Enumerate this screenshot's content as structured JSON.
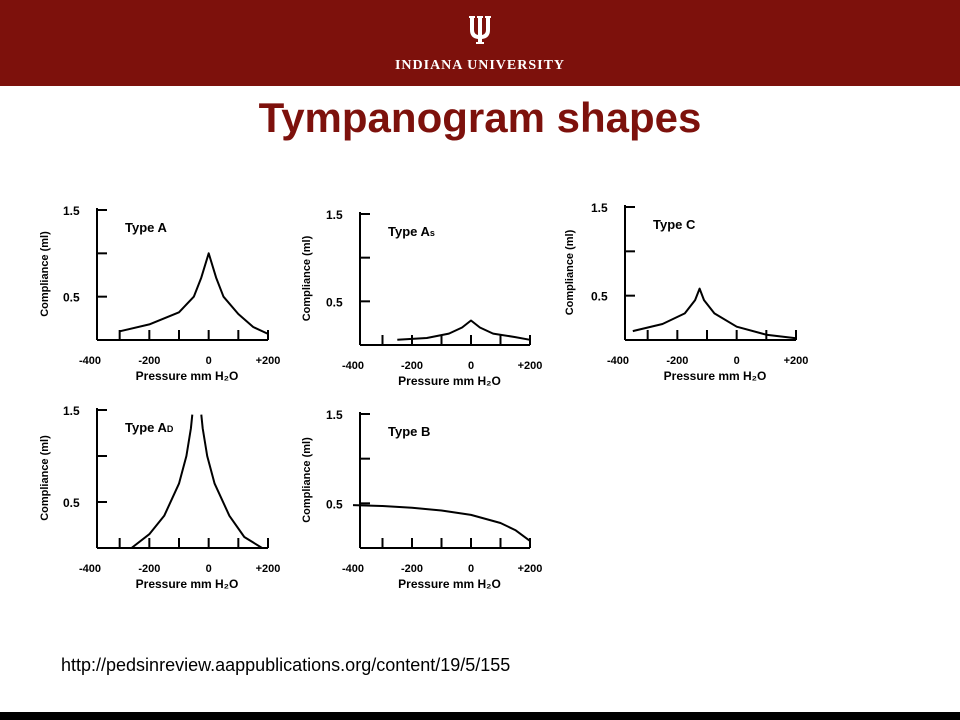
{
  "header": {
    "university_name": "INDIANA UNIVERSITY",
    "logo": "trident-icon",
    "background_color": "#7d110c"
  },
  "slide_title": "Tympanogram shapes",
  "source_url": "http://pedsinreview.aappublications.org/content/19/5/155",
  "chart_data": [
    {
      "type": "line",
      "title": "Type A",
      "xlabel": "Pressure mm H₂O",
      "ylabel": "Compliance (ml)",
      "xlim": [
        -400,
        200
      ],
      "ylim": [
        0,
        1.5
      ],
      "x_ticks": [
        "-400",
        "-200",
        "0",
        "+200"
      ],
      "y_ticks": [
        "1.5",
        "0.5"
      ],
      "series": [
        {
          "x": [
            -300,
            -200,
            -100,
            -50,
            -25,
            0,
            25,
            50,
            100,
            150,
            200
          ],
          "y": [
            0.1,
            0.18,
            0.32,
            0.5,
            0.72,
            1.0,
            0.72,
            0.5,
            0.3,
            0.15,
            0.07
          ]
        }
      ]
    },
    {
      "type": "line",
      "title": "Type As",
      "xlabel": "Pressure mm H₂O",
      "ylabel": "Compliance (ml)",
      "xlim": [
        -400,
        200
      ],
      "ylim": [
        0,
        1.5
      ],
      "x_ticks": [
        "-400",
        "-200",
        "0",
        "+200"
      ],
      "y_ticks": [
        "1.5",
        "0.5"
      ],
      "series": [
        {
          "x": [
            -250,
            -150,
            -75,
            -30,
            0,
            30,
            75,
            150,
            200
          ],
          "y": [
            0.06,
            0.08,
            0.13,
            0.2,
            0.28,
            0.2,
            0.13,
            0.09,
            0.06
          ]
        }
      ]
    },
    {
      "type": "line",
      "title": "Type C",
      "xlabel": "Pressure mm H₂O",
      "ylabel": "Compliance (ml)",
      "xlim": [
        -400,
        200
      ],
      "ylim": [
        0,
        1.5
      ],
      "x_ticks": [
        "-400",
        "-200",
        "0",
        "+200"
      ],
      "y_ticks": [
        "1.5",
        "0.5"
      ],
      "series": [
        {
          "x": [
            -350,
            -250,
            -175,
            -140,
            -125,
            -110,
            -75,
            0,
            100,
            200
          ],
          "y": [
            0.1,
            0.18,
            0.3,
            0.45,
            0.58,
            0.45,
            0.3,
            0.15,
            0.06,
            0.02
          ]
        }
      ]
    },
    {
      "type": "line",
      "title": "Type AD",
      "xlabel": "Pressure mm H₂O",
      "ylabel": "Compliance (ml)",
      "xlim": [
        -400,
        200
      ],
      "ylim": [
        0,
        1.5
      ],
      "x_ticks": [
        "-400",
        "-200",
        "0",
        "+200"
      ],
      "y_ticks": [
        "1.5",
        "0.5"
      ],
      "series": [
        {
          "x": [
            -260,
            -200,
            -150,
            -100,
            -75,
            -60,
            -55
          ],
          "y": [
            0.0,
            0.15,
            0.35,
            0.7,
            1.0,
            1.3,
            1.45
          ]
        },
        {
          "x": [
            -25,
            -20,
            -5,
            20,
            70,
            120,
            180
          ],
          "y": [
            1.45,
            1.3,
            1.0,
            0.7,
            0.35,
            0.12,
            0.0
          ]
        }
      ]
    },
    {
      "type": "line",
      "title": "Type B",
      "xlabel": "Pressure mm H₂O",
      "ylabel": "Compliance (ml)",
      "xlim": [
        -400,
        200
      ],
      "ylim": [
        0,
        1.5
      ],
      "x_ticks": [
        "-400",
        "-200",
        "0",
        "+200"
      ],
      "y_ticks": [
        "1.5",
        "0.5"
      ],
      "series": [
        {
          "x": [
            -400,
            -300,
            -200,
            -100,
            0,
            100,
            150,
            200,
            200
          ],
          "y": [
            0.48,
            0.47,
            0.45,
            0.42,
            0.37,
            0.28,
            0.2,
            0.08,
            0.0
          ]
        }
      ]
    }
  ]
}
